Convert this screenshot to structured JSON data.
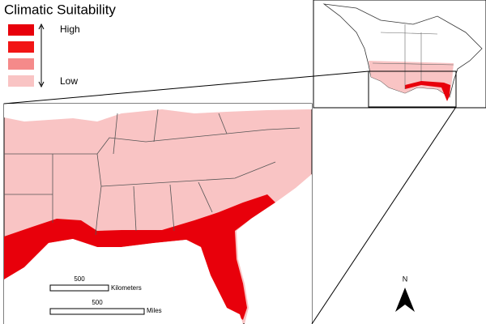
{
  "legend": {
    "title": "Climatic Suitability",
    "high_label": "High",
    "low_label": "Low",
    "swatch_colors": [
      "#e8000b",
      "#f21515",
      "#f58a8a",
      "#f9c4c4"
    ]
  },
  "scale_bars": [
    {
      "distance": 500,
      "unit": "Kilometers"
    },
    {
      "distance": 500,
      "unit": "Miles"
    }
  ],
  "north_arrow": "N"
}
